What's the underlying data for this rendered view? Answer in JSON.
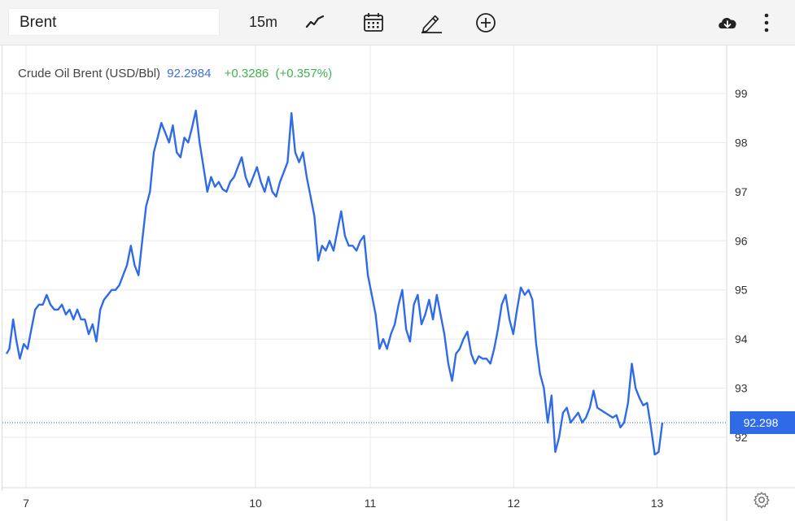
{
  "toolbar": {
    "symbol": "Brent",
    "interval": "15m",
    "icons": [
      "line-chart-icon",
      "calendar-icon",
      "draw-pencil-icon",
      "add-indicator-icon",
      "download-cloud-icon",
      "more-vertical-icon"
    ]
  },
  "legend": {
    "name": "Crude Oil Brent (USD/Bbl)",
    "price": "92.2984",
    "change": "+0.3286",
    "change_pct": "(+0.357%)"
  },
  "colors": {
    "line": "#2f6be8",
    "last_price_tag": "#2f6be8",
    "positive": "#3fb34f",
    "price_text": "#3f6fd8",
    "grid": "#e8e8e8"
  },
  "chart_data": {
    "type": "line",
    "title": "",
    "xlabel": "",
    "ylabel": "",
    "ylim": [
      91.0,
      99.8
    ],
    "y_ticks": [
      92,
      93,
      94,
      95,
      96,
      97,
      98,
      99
    ],
    "x_ticks": [
      {
        "label": "7",
        "x": 1
      },
      {
        "label": "10",
        "x": 13
      },
      {
        "label": "11",
        "x": 19
      },
      {
        "label": "12",
        "x": 26.5
      },
      {
        "label": "13",
        "x": 34
      }
    ],
    "x_range": [
      0,
      38
    ],
    "last_value_label": "92.298",
    "last_value": 92.298,
    "grid": true,
    "series": [
      {
        "points": [
          [
            0.0,
            93.7
          ],
          [
            0.15,
            93.8
          ],
          [
            0.35,
            94.4
          ],
          [
            0.5,
            94.0
          ],
          [
            0.7,
            93.6
          ],
          [
            0.9,
            93.9
          ],
          [
            1.1,
            93.8
          ],
          [
            1.3,
            94.2
          ],
          [
            1.5,
            94.6
          ],
          [
            1.7,
            94.7
          ],
          [
            1.9,
            94.7
          ],
          [
            2.1,
            94.9
          ],
          [
            2.3,
            94.7
          ],
          [
            2.5,
            94.6
          ],
          [
            2.7,
            94.6
          ],
          [
            2.9,
            94.7
          ],
          [
            3.1,
            94.5
          ],
          [
            3.3,
            94.6
          ],
          [
            3.5,
            94.4
          ],
          [
            3.7,
            94.6
          ],
          [
            3.9,
            94.4
          ],
          [
            4.1,
            94.4
          ],
          [
            4.3,
            94.1
          ],
          [
            4.5,
            94.3
          ],
          [
            4.7,
            93.95
          ],
          [
            4.9,
            94.6
          ],
          [
            5.1,
            94.8
          ],
          [
            5.3,
            94.9
          ],
          [
            5.5,
            95.0
          ],
          [
            5.7,
            95.0
          ],
          [
            5.9,
            95.1
          ],
          [
            6.1,
            95.3
          ],
          [
            6.3,
            95.5
          ],
          [
            6.5,
            95.9
          ],
          [
            6.7,
            95.5
          ],
          [
            6.9,
            95.3
          ],
          [
            7.1,
            96.0
          ],
          [
            7.3,
            96.7
          ],
          [
            7.5,
            97.0
          ],
          [
            7.7,
            97.8
          ],
          [
            7.9,
            98.1
          ],
          [
            8.1,
            98.4
          ],
          [
            8.3,
            98.2
          ],
          [
            8.5,
            98.0
          ],
          [
            8.7,
            98.35
          ],
          [
            8.9,
            97.8
          ],
          [
            9.1,
            97.7
          ],
          [
            9.3,
            98.1
          ],
          [
            9.5,
            98.0
          ],
          [
            9.7,
            98.3
          ],
          [
            9.9,
            98.65
          ],
          [
            10.1,
            98.0
          ],
          [
            10.3,
            97.5
          ],
          [
            10.5,
            97.0
          ],
          [
            10.7,
            97.3
          ],
          [
            10.9,
            97.1
          ],
          [
            11.1,
            97.2
          ],
          [
            11.3,
            97.05
          ],
          [
            11.5,
            97.0
          ],
          [
            11.7,
            97.2
          ],
          [
            11.9,
            97.3
          ],
          [
            12.1,
            97.5
          ],
          [
            12.3,
            97.7
          ],
          [
            12.5,
            97.3
          ],
          [
            12.7,
            97.1
          ],
          [
            12.9,
            97.3
          ],
          [
            13.1,
            97.5
          ],
          [
            13.3,
            97.2
          ],
          [
            13.5,
            97.0
          ],
          [
            13.7,
            97.3
          ],
          [
            13.9,
            97.0
          ],
          [
            14.1,
            96.9
          ],
          [
            14.3,
            97.2
          ],
          [
            14.5,
            97.4
          ],
          [
            14.7,
            97.6
          ],
          [
            14.9,
            98.6
          ],
          [
            15.1,
            97.8
          ],
          [
            15.3,
            97.6
          ],
          [
            15.5,
            97.8
          ],
          [
            15.7,
            97.3
          ],
          [
            15.9,
            96.9
          ],
          [
            16.1,
            96.5
          ],
          [
            16.3,
            95.6
          ],
          [
            16.5,
            95.9
          ],
          [
            16.7,
            95.8
          ],
          [
            16.9,
            96.0
          ],
          [
            17.1,
            95.8
          ],
          [
            17.3,
            96.2
          ],
          [
            17.5,
            96.6
          ],
          [
            17.7,
            96.1
          ],
          [
            17.9,
            95.9
          ],
          [
            18.1,
            95.9
          ],
          [
            18.3,
            95.8
          ],
          [
            18.5,
            96.0
          ],
          [
            18.7,
            96.1
          ],
          [
            18.9,
            95.3
          ],
          [
            19.1,
            94.9
          ],
          [
            19.3,
            94.5
          ],
          [
            19.5,
            93.8
          ],
          [
            19.7,
            94.0
          ],
          [
            19.9,
            93.8
          ],
          [
            20.1,
            94.1
          ],
          [
            20.3,
            94.3
          ],
          [
            20.5,
            94.7
          ],
          [
            20.7,
            95.0
          ],
          [
            20.9,
            94.2
          ],
          [
            21.1,
            93.95
          ],
          [
            21.3,
            94.7
          ],
          [
            21.5,
            94.9
          ],
          [
            21.7,
            94.3
          ],
          [
            21.9,
            94.5
          ],
          [
            22.1,
            94.8
          ],
          [
            22.3,
            94.4
          ],
          [
            22.5,
            94.9
          ],
          [
            22.7,
            94.5
          ],
          [
            22.9,
            94.1
          ],
          [
            23.1,
            93.5
          ],
          [
            23.3,
            93.15
          ],
          [
            23.5,
            93.7
          ],
          [
            23.7,
            93.8
          ],
          [
            23.9,
            94.0
          ],
          [
            24.1,
            94.15
          ],
          [
            24.3,
            93.7
          ],
          [
            24.5,
            93.5
          ],
          [
            24.7,
            93.65
          ],
          [
            24.9,
            93.6
          ],
          [
            25.1,
            93.6
          ],
          [
            25.3,
            93.5
          ],
          [
            25.5,
            93.8
          ],
          [
            25.7,
            94.2
          ],
          [
            25.9,
            94.7
          ],
          [
            26.1,
            94.9
          ],
          [
            26.3,
            94.4
          ],
          [
            26.5,
            94.1
          ],
          [
            26.7,
            94.6
          ],
          [
            26.9,
            95.05
          ],
          [
            27.1,
            94.9
          ],
          [
            27.3,
            95.0
          ],
          [
            27.5,
            94.8
          ],
          [
            27.7,
            93.9
          ],
          [
            27.9,
            93.3
          ],
          [
            28.1,
            93.0
          ],
          [
            28.3,
            92.3
          ],
          [
            28.5,
            92.85
          ],
          [
            28.7,
            91.7
          ],
          [
            28.9,
            92.0
          ],
          [
            29.1,
            92.5
          ],
          [
            29.3,
            92.6
          ],
          [
            29.5,
            92.3
          ],
          [
            29.7,
            92.4
          ],
          [
            29.9,
            92.5
          ],
          [
            30.1,
            92.3
          ],
          [
            30.3,
            92.4
          ],
          [
            30.5,
            92.6
          ],
          [
            30.7,
            92.95
          ],
          [
            30.9,
            92.6
          ],
          [
            31.1,
            92.55
          ],
          [
            31.3,
            92.5
          ],
          [
            31.5,
            92.45
          ],
          [
            31.7,
            92.4
          ],
          [
            31.9,
            92.45
          ],
          [
            32.1,
            92.2
          ],
          [
            32.3,
            92.3
          ],
          [
            32.5,
            92.7
          ],
          [
            32.7,
            93.5
          ],
          [
            32.9,
            93.0
          ],
          [
            33.1,
            92.8
          ],
          [
            33.3,
            92.65
          ],
          [
            33.5,
            92.7
          ],
          [
            33.7,
            92.2
          ],
          [
            33.9,
            91.65
          ],
          [
            34.1,
            91.7
          ],
          [
            34.3,
            92.3
          ]
        ]
      }
    ]
  },
  "footer": {
    "settings_icon": "settings-gear-icon"
  }
}
